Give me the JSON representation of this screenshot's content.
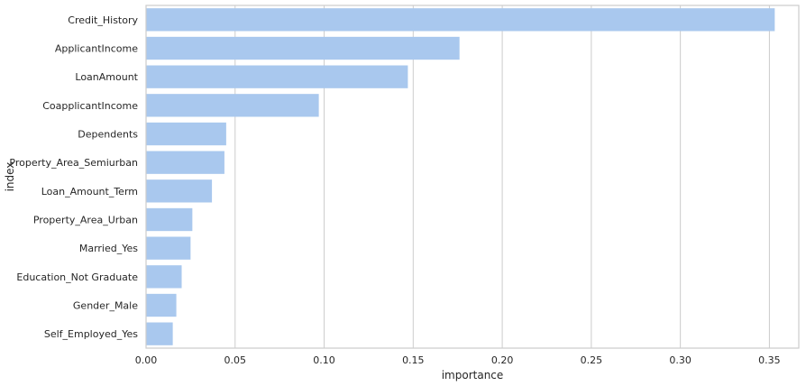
{
  "chart_data": {
    "type": "bar",
    "orientation": "horizontal",
    "categories": [
      "Credit_History",
      "ApplicantIncome",
      "LoanAmount",
      "CoapplicantIncome",
      "Dependents",
      "Property_Area_Semiurban",
      "Loan_Amount_Term",
      "Property_Area_Urban",
      "Married_Yes",
      "Education_Not Graduate",
      "Gender_Male",
      "Self_Employed_Yes"
    ],
    "values": [
      0.353,
      0.176,
      0.147,
      0.097,
      0.045,
      0.044,
      0.037,
      0.026,
      0.025,
      0.02,
      0.017,
      0.015
    ],
    "xlabel": "importance",
    "ylabel": "index",
    "xlim": [
      0,
      0.3665
    ],
    "xticks": [
      0.0,
      0.05,
      0.1,
      0.15,
      0.2,
      0.25,
      0.3,
      0.35
    ],
    "xtick_labels": [
      "0.00",
      "0.05",
      "0.10",
      "0.15",
      "0.20",
      "0.25",
      "0.30",
      "0.35"
    ],
    "grid": "vertical",
    "bar_color": "#a9c8ee",
    "grid_color": "#cccccc",
    "spine_color": "#cccccc",
    "text_color": "#262626"
  }
}
